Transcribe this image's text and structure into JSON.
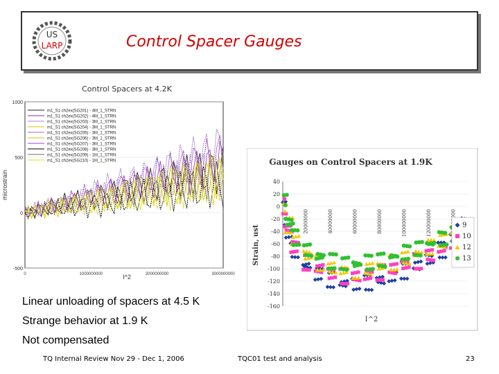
{
  "slide": {
    "title": "Control Spacer Gauges",
    "logo_text_top": "US",
    "logo_text_bottom": "LARP",
    "bullets": [
      "Linear unloading of spacers at 4.5 K",
      "Strange behavior at 1.9 K",
      "Not compensated"
    ],
    "footer_left": "TQ Internal Review Nov 29 - Dec 1, 2006",
    "footer_center": "TQC01 test and analysis",
    "footer_right": "23"
  },
  "chart_data": [
    {
      "type": "line",
      "title": "Control Spacers at 4.2K",
      "ylabel": "microstrain",
      "xlabel": "I^2",
      "ylim": [
        -500,
        1000
      ],
      "xlim": [
        0,
        300000000
      ],
      "y_ticks": [
        "1000",
        "500",
        "0",
        "-500"
      ],
      "x_ticks": [
        "0",
        "1000000000",
        "2000000000",
        "3000000000"
      ],
      "series": [
        {
          "name": "m1_S1 ch2ex(SG201) - 4M_1_STRN",
          "color": "#202020",
          "values": [
            0,
            80,
            160,
            240,
            320,
            400
          ]
        },
        {
          "name": "m1_S1 ch2ex(SG202) - 4M_1_STRN",
          "color": "#7b2bb3",
          "values": [
            0,
            90,
            190,
            290,
            400,
            520
          ]
        },
        {
          "name": "m1_S1 ch2ex(SG203) - 3M_1_STRN",
          "color": "#b080d0",
          "values": [
            0,
            70,
            150,
            230,
            300,
            380
          ]
        },
        {
          "name": "m1_S1 ch2ex(SG204) - 3M_1_STRN",
          "color": "#d6c400",
          "values": [
            0,
            60,
            120,
            200,
            260,
            320
          ]
        },
        {
          "name": "m1_S1 ch2ex(SG205) - 3M_1_STRN",
          "color": "#9a6fbf",
          "values": [
            0,
            100,
            210,
            330,
            450,
            600
          ]
        },
        {
          "name": "m1_S1 ch2ex(SG206) - 3M_1_STRN",
          "color": "#c8c800",
          "values": [
            0,
            50,
            110,
            170,
            230,
            300
          ]
        },
        {
          "name": "m1_S1 ch2ex(SG207) - 3M_1_STRN",
          "color": "#a040c0",
          "values": [
            0,
            85,
            170,
            260,
            350,
            450
          ]
        },
        {
          "name": "m1_S1 ch2ex(SG208) - 3M_1_STRN",
          "color": "#000000",
          "values": [
            0,
            40,
            90,
            150,
            210,
            260
          ]
        },
        {
          "name": "m1_S1 ch2ex(SG209) - 1M_1_STRN",
          "color": "#6a6a6a",
          "values": [
            0,
            65,
            140,
            210,
            290,
            360
          ]
        },
        {
          "name": "m1_S1 ch2ex(SG210) - 1M_1_STRN",
          "color": "#e0e000",
          "values": [
            0,
            55,
            120,
            180,
            250,
            310
          ]
        }
      ]
    },
    {
      "type": "scatter",
      "title": "Gauges on Control Spacers at 1.9K",
      "ylabel": "Strain, ust",
      "xlabel": "I^2",
      "ylim": [
        -160,
        40
      ],
      "xlim": [
        0,
        150000000
      ],
      "y_ticks": [
        "40",
        "20",
        "0",
        "-20",
        "-40",
        "-60",
        "-80",
        "-100",
        "-120",
        "-140",
        "-160"
      ],
      "x_ticks": [
        "20000000",
        "40000000",
        "60000000",
        "80000000",
        "100000000",
        "120000000",
        "140000000"
      ],
      "x": [
        0,
        5000000,
        10000000,
        20000000,
        30000000,
        40000000,
        50000000,
        60000000,
        70000000,
        80000000,
        90000000,
        100000000,
        110000000,
        120000000,
        130000000,
        140000000,
        148000000
      ],
      "series": [
        {
          "name": "9",
          "color": "#1f3fa0",
          "values": [
            5,
            -40,
            -70,
            -95,
            -108,
            -118,
            -124,
            -125,
            -122,
            -118,
            -112,
            -104,
            -95,
            -85,
            -70,
            -50,
            -25
          ]
        },
        {
          "name": "10",
          "color": "#ff40c0",
          "values": [
            0,
            -35,
            -65,
            -90,
            -100,
            -108,
            -112,
            -112,
            -110,
            -106,
            -100,
            -94,
            -88,
            -78,
            -68,
            -55,
            -40
          ]
        },
        {
          "name": "12",
          "color": "#f0c800",
          "values": [
            -2,
            -30,
            -55,
            -78,
            -90,
            -98,
            -102,
            -103,
            -100,
            -96,
            -90,
            -82,
            -75,
            -65,
            -55,
            -45,
            -35
          ]
        },
        {
          "name": "13",
          "color": "#30c030",
          "values": [
            10,
            -25,
            -50,
            -70,
            -80,
            -88,
            -92,
            -93,
            -90,
            -86,
            -80,
            -74,
            -68,
            -60,
            -52,
            -44,
            -36
          ]
        }
      ]
    }
  ]
}
